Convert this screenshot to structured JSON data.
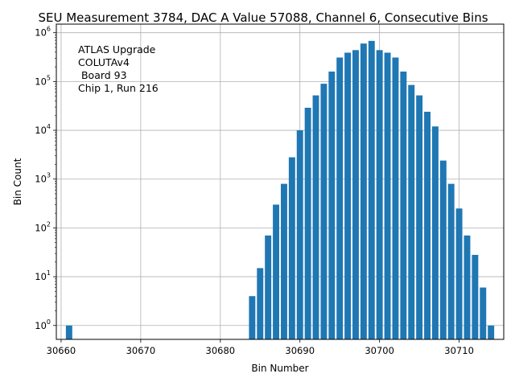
{
  "chart_data": {
    "type": "bar",
    "scale_y": "log",
    "title": "SEU Measurement 3784, DAC A Value 57088, Channel 6, Consecutive Bins",
    "xlabel": "Bin Number",
    "ylabel": "Bin Count",
    "annotation": [
      "ATLAS Upgrade",
      "COLUTAv4",
      " Board 93",
      "Chip 1, Run 216"
    ],
    "bar_color": "#1f77b4",
    "grid": true,
    "xlim": [
      30659.4,
      30715.6
    ],
    "ylim": [
      0.52,
      1500000
    ],
    "x_ticks": [
      30660,
      30670,
      30680,
      30690,
      30700,
      30710
    ],
    "y_ticks": [
      {
        "exp": "0",
        "value": 1
      },
      {
        "exp": "1",
        "value": 10
      },
      {
        "exp": "2",
        "value": 100
      },
      {
        "exp": "3",
        "value": 1000
      },
      {
        "exp": "4",
        "value": 10000
      },
      {
        "exp": "5",
        "value": 100000
      },
      {
        "exp": "6",
        "value": 1000000
      }
    ],
    "y_tick_base": "10",
    "x": [
      30661,
      30684,
      30685,
      30686,
      30687,
      30688,
      30689,
      30690,
      30691,
      30692,
      30693,
      30694,
      30695,
      30696,
      30697,
      30698,
      30699,
      30700,
      30701,
      30702,
      30703,
      30704,
      30705,
      30706,
      30707,
      30708,
      30709,
      30710,
      30711,
      30712,
      30713,
      30714
    ],
    "values": [
      1,
      4,
      15,
      70,
      300,
      800,
      2800,
      10000,
      29000,
      52000,
      90000,
      160000,
      310000,
      390000,
      440000,
      600000,
      680000,
      440000,
      390000,
      310000,
      160000,
      85000,
      52000,
      24000,
      12000,
      2400,
      800,
      250,
      70,
      28,
      6,
      1
    ]
  }
}
